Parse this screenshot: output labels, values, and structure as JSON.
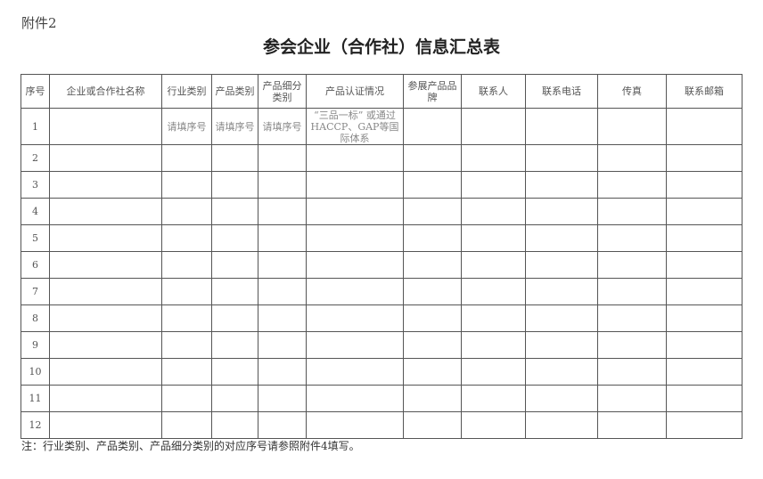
{
  "attachment_label": "附件2",
  "title": "参会企业（合作社）信息汇总表",
  "headers": [
    "序号",
    "企业或合作社名称",
    "行业类别",
    "产品类别",
    "产品细分类别",
    "产品认证情况",
    "参展产品品牌",
    "联系人",
    "联系电话",
    "传真",
    "联系邮箱"
  ],
  "row1": {
    "no": "1",
    "industry": "请填序号",
    "product": "请填序号",
    "subcategory": "请填序号",
    "certification": "“三品一标” 或通过HACCP、GAP等国际体系"
  },
  "row_numbers": [
    "2",
    "3",
    "4",
    "5",
    "6",
    "7",
    "8",
    "9",
    "10",
    "11",
    "12"
  ],
  "note": "注：行业类别、产品类别、产品细分类别的对应序号请参照附件4填写。"
}
